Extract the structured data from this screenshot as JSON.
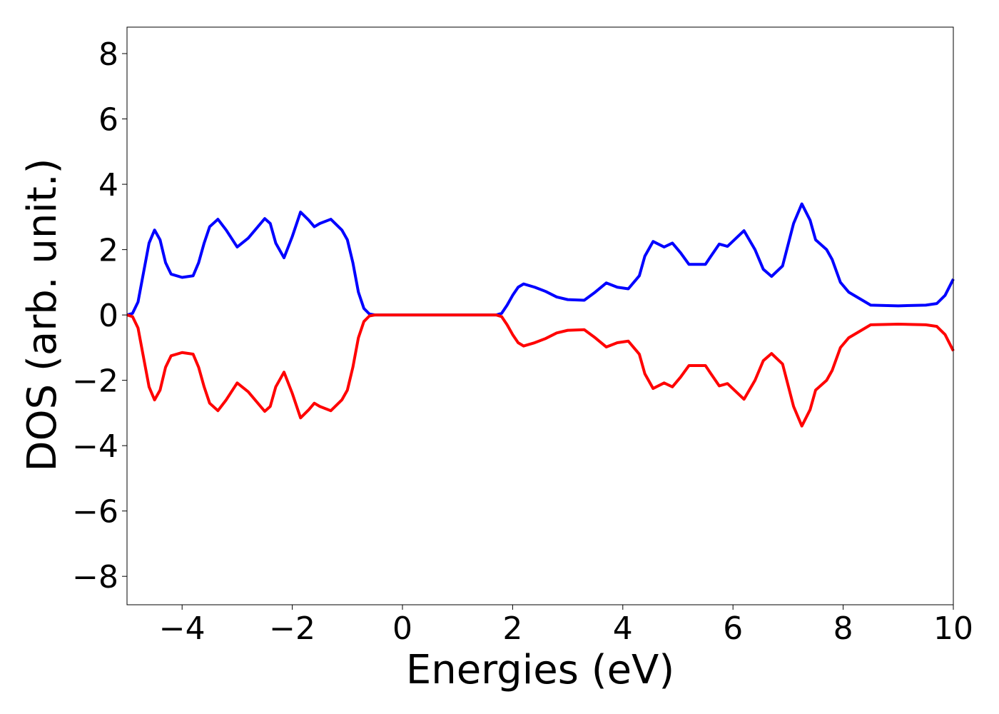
{
  "chart_data": {
    "type": "line",
    "xlabel": "Energies (eV)",
    "ylabel": "DOS (arb. unit.)",
    "x": [
      -5,
      -4.9,
      -4.8,
      -4.7,
      -4.6,
      -4.5,
      -4.4,
      -4.3,
      -4.2,
      -4.0,
      -3.8,
      -3.7,
      -3.6,
      -3.5,
      -3.35,
      -3.2,
      -3.0,
      -2.8,
      -2.5,
      -2.4,
      -2.3,
      -2.15,
      -2.0,
      -1.85,
      -1.7,
      -1.6,
      -1.5,
      -1.3,
      -1.1,
      -1.0,
      -0.9,
      -0.8,
      -0.7,
      -0.6,
      -0.5,
      1.7,
      1.8,
      1.9,
      2.0,
      2.1,
      2.2,
      2.4,
      2.6,
      2.8,
      3.0,
      3.3,
      3.5,
      3.7,
      3.9,
      4.1,
      4.3,
      4.4,
      4.55,
      4.75,
      4.9,
      5.05,
      5.2,
      5.5,
      5.6,
      5.75,
      5.9,
      6.2,
      6.4,
      6.55,
      6.7,
      6.9,
      7.1,
      7.25,
      7.4,
      7.5,
      7.7,
      7.8,
      7.95,
      8.1,
      8.3,
      8.5,
      9.0,
      9.5,
      9.7,
      9.85,
      10
    ],
    "series": [
      {
        "color": "#0000ff",
        "values": [
          0,
          0.05,
          0.4,
          1.3,
          2.2,
          2.6,
          2.3,
          1.6,
          1.25,
          1.15,
          1.2,
          1.6,
          2.2,
          2.7,
          2.93,
          2.6,
          2.08,
          2.35,
          2.95,
          2.8,
          2.2,
          1.75,
          2.4,
          3.15,
          2.9,
          2.7,
          2.8,
          2.93,
          2.6,
          2.3,
          1.6,
          0.7,
          0.2,
          0.03,
          0,
          0,
          0.05,
          0.3,
          0.6,
          0.85,
          0.95,
          0.85,
          0.72,
          0.55,
          0.47,
          0.45,
          0.7,
          0.98,
          0.85,
          0.8,
          1.2,
          1.8,
          2.25,
          2.08,
          2.2,
          1.9,
          1.55,
          1.55,
          1.8,
          2.17,
          2.1,
          2.58,
          2.0,
          1.4,
          1.18,
          1.5,
          2.8,
          3.4,
          2.9,
          2.3,
          2.0,
          1.7,
          1.0,
          0.7,
          0.5,
          0.3,
          0.28,
          0.3,
          0.35,
          0.6,
          1.1
        ]
      },
      {
        "color": "#ff0000",
        "values": [
          0,
          -0.05,
          -0.4,
          -1.3,
          -2.2,
          -2.6,
          -2.3,
          -1.6,
          -1.25,
          -1.15,
          -1.2,
          -1.6,
          -2.2,
          -2.7,
          -2.93,
          -2.6,
          -2.08,
          -2.35,
          -2.95,
          -2.8,
          -2.2,
          -1.75,
          -2.4,
          -3.15,
          -2.9,
          -2.7,
          -2.8,
          -2.93,
          -2.6,
          -2.3,
          -1.6,
          -0.7,
          -0.2,
          -0.03,
          0,
          0,
          -0.05,
          -0.3,
          -0.6,
          -0.85,
          -0.95,
          -0.85,
          -0.72,
          -0.55,
          -0.47,
          -0.45,
          -0.7,
          -0.98,
          -0.85,
          -0.8,
          -1.2,
          -1.8,
          -2.25,
          -2.08,
          -2.2,
          -1.9,
          -1.55,
          -1.55,
          -1.8,
          -2.17,
          -2.1,
          -2.58,
          -2.0,
          -1.4,
          -1.18,
          -1.5,
          -2.8,
          -3.4,
          -2.9,
          -2.3,
          -2.0,
          -1.7,
          -1.0,
          -0.7,
          -0.5,
          -0.3,
          -0.28,
          -0.3,
          -0.35,
          -0.6,
          -1.1
        ]
      }
    ],
    "xlim": [
      -5,
      10
    ],
    "xticks": [
      {
        "value": -4,
        "label": "−4"
      },
      {
        "value": -2,
        "label": "−2"
      },
      0,
      2,
      4,
      6,
      8,
      10
    ],
    "ylim": [
      -8.87,
      8.81
    ],
    "yticks": [
      {
        "value": -8,
        "label": "−8"
      },
      {
        "value": -6,
        "label": "−6"
      },
      {
        "value": -4,
        "label": "−4"
      },
      {
        "value": -2,
        "label": "−2"
      },
      0,
      2,
      4,
      6,
      8
    ]
  }
}
